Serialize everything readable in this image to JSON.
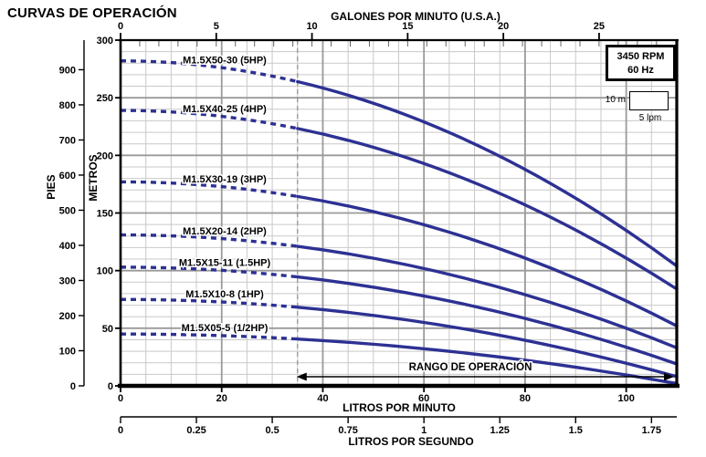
{
  "header": {
    "title": "CURVAS DE OPERACIÓN"
  },
  "badge": {
    "line1": "3450 RPM",
    "line2": "60 Hz"
  },
  "scale_indicator": {
    "vertical": "10 m",
    "horizontal": "5 lpm"
  },
  "axes": {
    "top_label": "GALONES POR MINUTO (U.S.A.)",
    "bottom_label": "LITROS POR MINUTO",
    "bottom2_label": "LITROS POR SEGUNDO",
    "left_outer_label": "PIES",
    "left_inner_label": "METROS"
  },
  "range": {
    "label": "RANGO DE OPERACIÓN",
    "from_lpm": 35,
    "to_lpm": 110
  },
  "chart_data": {
    "type": "line",
    "title": "CURVAS DE OPERACIÓN",
    "x_primary_unit": "litros por minuto",
    "xlim_lpm": [
      0,
      110
    ],
    "ylim_metros": [
      0,
      300
    ],
    "grid": {
      "minor_x_step_lpm": 5,
      "major_x_step_lpm": 20,
      "minor_y_step_m": 10,
      "major_y_step_m": 50
    },
    "top_axis_gpm_ticks": [
      "0",
      "5",
      "10",
      "15",
      "20",
      "25"
    ],
    "bottom_axis_lpm_ticks": [
      "0",
      "20",
      "40",
      "60",
      "80",
      "100"
    ],
    "bottom2_axis_lps_ticks": [
      "0",
      "0.25",
      "0.5",
      "0.75",
      "1",
      "1.25",
      "1.5",
      "1.75"
    ],
    "left_metros_ticks": [
      "0",
      "50",
      "100",
      "150",
      "200",
      "250",
      "300"
    ],
    "left_pies_ticks": [
      "0",
      "100",
      "200",
      "300",
      "400",
      "500",
      "600",
      "700",
      "800",
      "900"
    ],
    "dashed_guideline_lpm": 35,
    "dashed_until_lpm": 35,
    "curve_color": "#2d3193",
    "series": [
      {
        "label": "M1.5X50-30 (5HP)",
        "points_lpm_m": [
          [
            0,
            282
          ],
          [
            20,
            276
          ],
          [
            35,
            264
          ],
          [
            50,
            245
          ],
          [
            70,
            210
          ],
          [
            90,
            163
          ],
          [
            110,
            104
          ]
        ]
      },
      {
        "label": "M1.5X40-25 (4HP)",
        "points_lpm_m": [
          [
            0,
            239
          ],
          [
            20,
            234
          ],
          [
            35,
            223
          ],
          [
            50,
            207
          ],
          [
            70,
            176
          ],
          [
            90,
            135
          ],
          [
            110,
            84
          ]
        ]
      },
      {
        "label": "M1.5X30-19 (3HP)",
        "points_lpm_m": [
          [
            0,
            177
          ],
          [
            20,
            173
          ],
          [
            35,
            164
          ],
          [
            50,
            151
          ],
          [
            70,
            126
          ],
          [
            90,
            93
          ],
          [
            110,
            52
          ]
        ]
      },
      {
        "label": "M1.5X20-14 (2HP)",
        "points_lpm_m": [
          [
            0,
            131
          ],
          [
            20,
            128
          ],
          [
            35,
            121
          ],
          [
            50,
            111
          ],
          [
            70,
            91
          ],
          [
            90,
            65
          ],
          [
            110,
            33
          ]
        ]
      },
      {
        "label": "M1.5X15-11 (1.5HP)",
        "points_lpm_m": [
          [
            0,
            103
          ],
          [
            20,
            100
          ],
          [
            35,
            94
          ],
          [
            50,
            86
          ],
          [
            70,
            69
          ],
          [
            90,
            47
          ],
          [
            110,
            19
          ]
        ]
      },
      {
        "label": "M1.5X10-8 (1HP)",
        "points_lpm_m": [
          [
            0,
            75
          ],
          [
            20,
            73
          ],
          [
            35,
            68
          ],
          [
            50,
            61
          ],
          [
            70,
            48
          ],
          [
            90,
            30
          ],
          [
            110,
            8
          ]
        ]
      },
      {
        "label": "M1.5X05-5 (1/2HP)",
        "points_lpm_m": [
          [
            0,
            45
          ],
          [
            20,
            44
          ],
          [
            35,
            41
          ],
          [
            50,
            36
          ],
          [
            70,
            27
          ],
          [
            90,
            16
          ],
          [
            110,
            2
          ]
        ]
      }
    ]
  }
}
